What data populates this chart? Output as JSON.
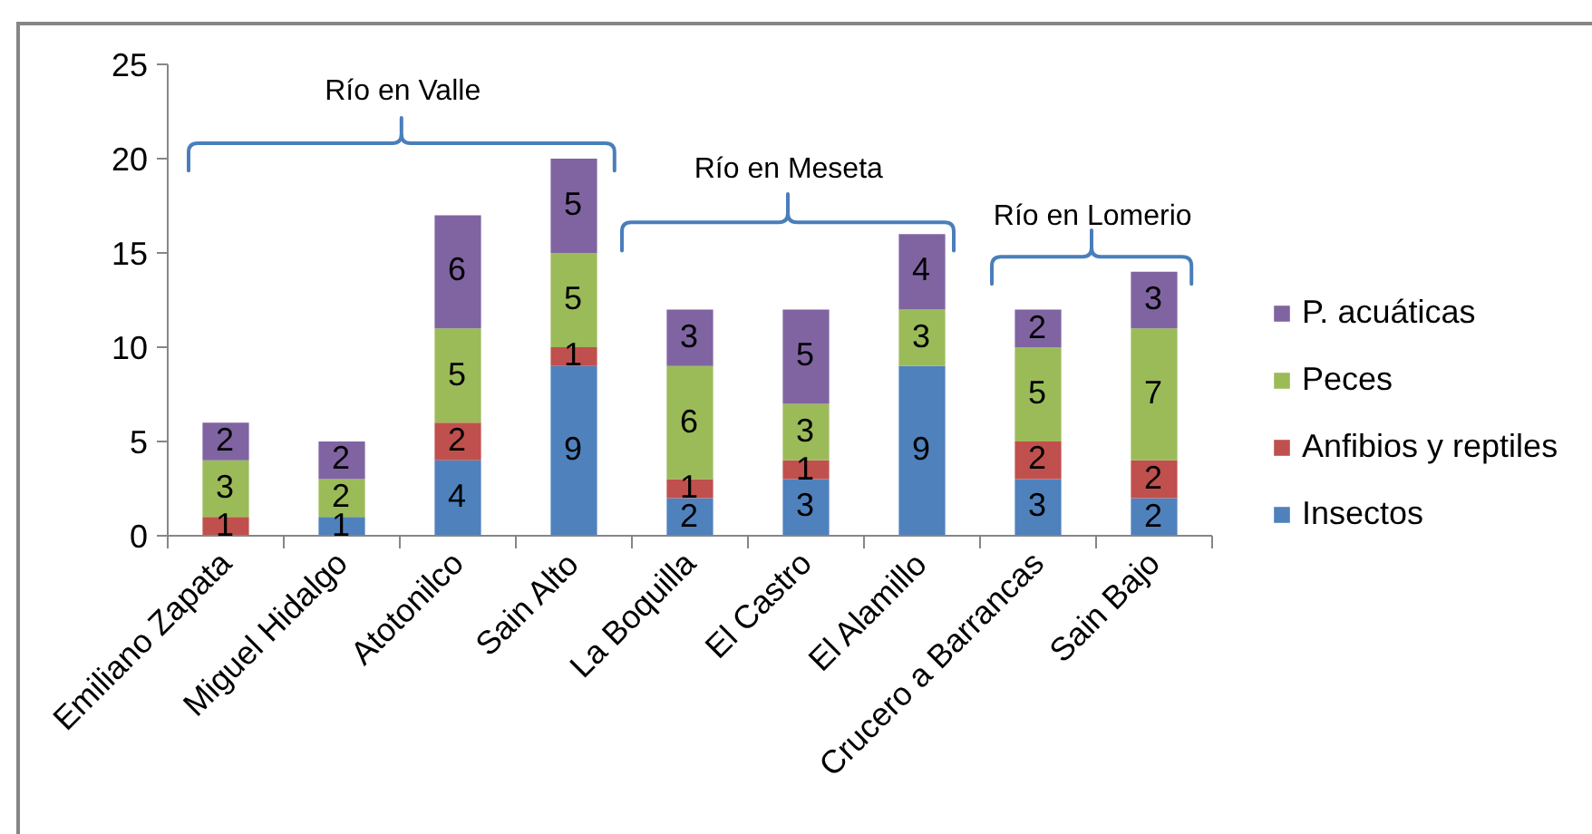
{
  "chart_data": {
    "type": "bar",
    "stacked": true,
    "annotations": [
      "Río en Valle",
      "Río en Meseta",
      "Río en Lomerio"
    ],
    "categories": [
      "Emiliano Zapata",
      "Miguel Hidalgo",
      "Atotonilco",
      "Sain Alto",
      "La Boquilla",
      "El Castro",
      "El Alamillo",
      "Crucero a Barrancas",
      "Sain Bajo"
    ],
    "series": [
      {
        "name": "Insectos",
        "color": "#4f81bd",
        "values": [
          0,
          1,
          4,
          9,
          2,
          3,
          9,
          3,
          2
        ],
        "value_labels": [
          null,
          "1",
          "4",
          "9",
          "2",
          "3",
          "9",
          "3",
          "2"
        ]
      },
      {
        "name": "Anfibios y reptiles",
        "color": "#c0504d",
        "values": [
          1,
          0,
          2,
          1,
          1,
          1,
          0,
          2,
          2
        ],
        "value_labels": [
          "1",
          null,
          "2",
          "1",
          "1",
          "1",
          null,
          "2",
          "2"
        ]
      },
      {
        "name": "Peces",
        "color": "#9bbb59",
        "values": [
          3,
          2,
          5,
          5,
          6,
          3,
          3,
          5,
          7
        ],
        "value_labels": [
          "3",
          "2",
          "5",
          "5",
          "6",
          "3",
          "3",
          "5",
          "7"
        ]
      },
      {
        "name": "P. acuáticas",
        "color": "#8064a2",
        "values": [
          2,
          2,
          6,
          5,
          3,
          5,
          4,
          2,
          3
        ],
        "value_labels": [
          "2",
          "2",
          "6",
          "5",
          "3",
          "5",
          "4",
          "2",
          "3"
        ]
      }
    ],
    "ylim": [
      0,
      25
    ],
    "yticks": [
      0,
      5,
      10,
      15,
      20,
      25
    ],
    "grid": false,
    "legend": "right"
  }
}
